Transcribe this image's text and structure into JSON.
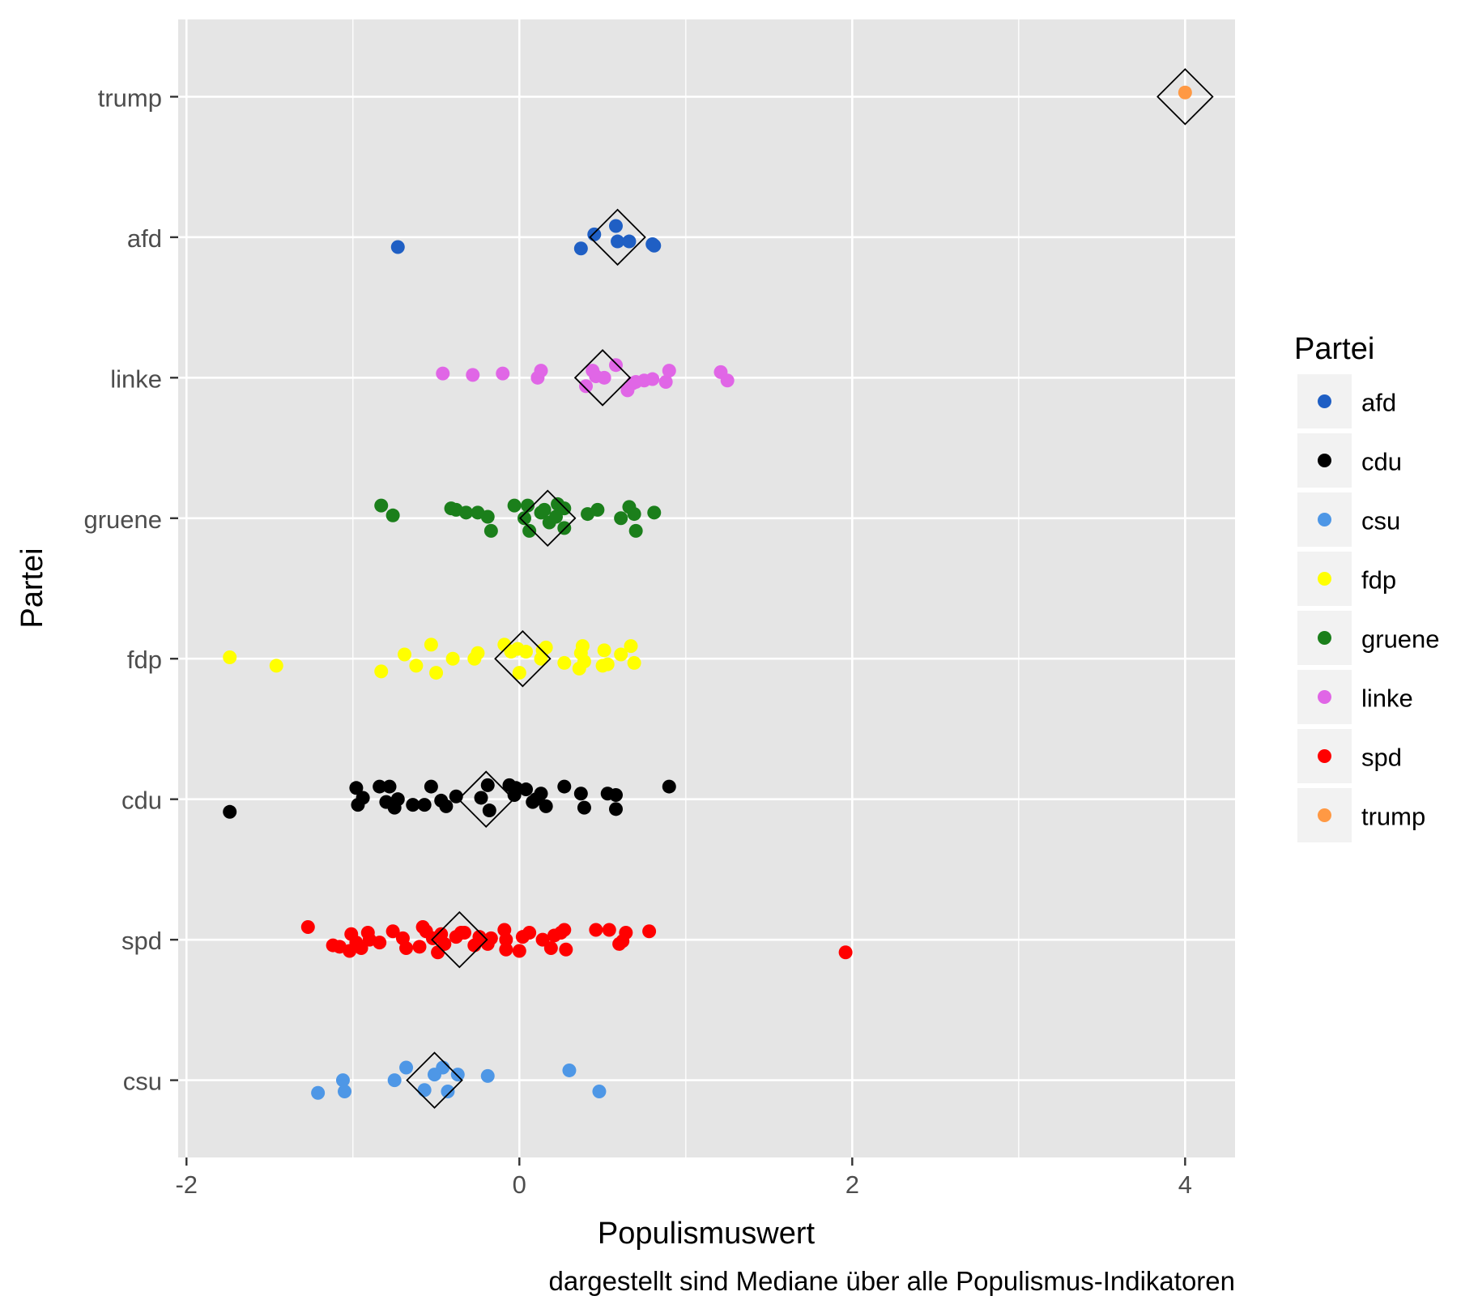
{
  "chart_data": {
    "type": "scatter",
    "title": "",
    "xlabel": "Populismuswert",
    "ylabel": "Partei",
    "caption": "dargestellt sind Mediane über alle Populismus-Indikatoren",
    "xlim": [
      -2.05,
      4.3
    ],
    "x_ticks": [
      -2,
      0,
      2,
      4
    ],
    "x_tick_labels": [
      "-2",
      "0",
      "2",
      "4"
    ],
    "categories": [
      "csu",
      "spd",
      "cdu",
      "fdp",
      "gruene",
      "linke",
      "afd",
      "trump"
    ],
    "grid": true,
    "panel_background": "#e5e5e5",
    "legend": {
      "title": "Partei",
      "position": "right",
      "entries": [
        {
          "label": "afd",
          "color": "#1f5fc4"
        },
        {
          "label": "cdu",
          "color": "#000000"
        },
        {
          "label": "csu",
          "color": "#4e97e6"
        },
        {
          "label": "fdp",
          "color": "#ffff00"
        },
        {
          "label": "gruene",
          "color": "#1b7f1b"
        },
        {
          "label": "linke",
          "color": "#e066e6"
        },
        {
          "label": "spd",
          "color": "#ff0000"
        },
        {
          "label": "trump",
          "color": "#ff9944"
        }
      ]
    },
    "series": [
      {
        "name": "trump",
        "color": "#ff9944",
        "median": 4.0,
        "points": [
          [
            4.0,
            0.03
          ]
        ]
      },
      {
        "name": "afd",
        "color": "#1f5fc4",
        "median": 0.59,
        "points": [
          [
            -0.73,
            -0.07
          ],
          [
            0.37,
            -0.08
          ],
          [
            0.45,
            0.02
          ],
          [
            0.58,
            0.08
          ],
          [
            0.59,
            -0.03
          ],
          [
            0.66,
            -0.03
          ],
          [
            0.8,
            -0.05
          ],
          [
            0.81,
            -0.06
          ]
        ]
      },
      {
        "name": "linke",
        "color": "#e066e6",
        "median": 0.5,
        "points": [
          [
            -0.46,
            0.03
          ],
          [
            -0.28,
            0.02
          ],
          [
            -0.1,
            0.03
          ],
          [
            0.11,
            0.0
          ],
          [
            0.13,
            0.05
          ],
          [
            0.4,
            -0.06
          ],
          [
            0.44,
            0.05
          ],
          [
            0.46,
            0.01
          ],
          [
            0.51,
            0.0
          ],
          [
            0.58,
            0.09
          ],
          [
            0.65,
            -0.09
          ],
          [
            0.68,
            -0.04
          ],
          [
            0.7,
            -0.03
          ],
          [
            0.75,
            -0.02
          ],
          [
            0.8,
            -0.01
          ],
          [
            0.88,
            -0.03
          ],
          [
            0.9,
            0.05
          ],
          [
            1.21,
            0.04
          ],
          [
            1.25,
            -0.02
          ]
        ]
      },
      {
        "name": "gruene",
        "color": "#1b7f1b",
        "median": 0.17,
        "points": [
          [
            -0.83,
            0.09
          ],
          [
            -0.76,
            0.02
          ],
          [
            -0.41,
            0.07
          ],
          [
            -0.38,
            0.06
          ],
          [
            -0.32,
            0.04
          ],
          [
            -0.25,
            0.04
          ],
          [
            -0.19,
            0.01
          ],
          [
            -0.17,
            -0.09
          ],
          [
            -0.03,
            0.09
          ],
          [
            0.03,
            0.0
          ],
          [
            0.05,
            0.09
          ],
          [
            0.06,
            -0.09
          ],
          [
            0.13,
            0.04
          ],
          [
            0.15,
            0.06
          ],
          [
            0.18,
            -0.03
          ],
          [
            0.22,
            0.01
          ],
          [
            0.23,
            0.1
          ],
          [
            0.27,
            0.07
          ],
          [
            0.27,
            -0.07
          ],
          [
            0.41,
            0.03
          ],
          [
            0.47,
            0.06
          ],
          [
            0.61,
            0.0
          ],
          [
            0.66,
            0.08
          ],
          [
            0.69,
            0.03
          ],
          [
            0.7,
            -0.09
          ],
          [
            0.81,
            0.04
          ]
        ]
      },
      {
        "name": "fdp",
        "color": "#ffff00",
        "median": 0.02,
        "points": [
          [
            -1.74,
            0.01
          ],
          [
            -1.46,
            -0.05
          ],
          [
            -0.83,
            -0.09
          ],
          [
            -0.69,
            0.03
          ],
          [
            -0.62,
            -0.05
          ],
          [
            -0.53,
            0.1
          ],
          [
            -0.5,
            -0.1
          ],
          [
            -0.4,
            0.0
          ],
          [
            -0.27,
            0.0
          ],
          [
            -0.25,
            0.04
          ],
          [
            -0.09,
            0.1
          ],
          [
            -0.05,
            0.05
          ],
          [
            -0.01,
            0.07
          ],
          [
            0.0,
            -0.1
          ],
          [
            0.04,
            0.05
          ],
          [
            0.13,
            0.0
          ],
          [
            0.14,
            0.06
          ],
          [
            0.16,
            0.08
          ],
          [
            0.27,
            -0.03
          ],
          [
            0.36,
            -0.07
          ],
          [
            0.37,
            0.04
          ],
          [
            0.38,
            0.09
          ],
          [
            0.39,
            -0.02
          ],
          [
            0.5,
            -0.05
          ],
          [
            0.51,
            0.06
          ],
          [
            0.53,
            -0.04
          ],
          [
            0.61,
            0.03
          ],
          [
            0.67,
            0.09
          ],
          [
            0.69,
            -0.03
          ]
        ]
      },
      {
        "name": "cdu",
        "color": "#000000",
        "median": -0.2,
        "points": [
          [
            -1.74,
            -0.09
          ],
          [
            -0.98,
            0.08
          ],
          [
            -0.97,
            -0.04
          ],
          [
            -0.94,
            0.01
          ],
          [
            -0.84,
            0.09
          ],
          [
            -0.8,
            -0.02
          ],
          [
            -0.78,
            0.09
          ],
          [
            -0.75,
            -0.06
          ],
          [
            -0.73,
            0.0
          ],
          [
            -0.64,
            -0.04
          ],
          [
            -0.57,
            -0.04
          ],
          [
            -0.53,
            0.09
          ],
          [
            -0.47,
            -0.01
          ],
          [
            -0.44,
            -0.05
          ],
          [
            -0.38,
            0.02
          ],
          [
            -0.23,
            0.01
          ],
          [
            -0.19,
            0.1
          ],
          [
            -0.18,
            -0.08
          ],
          [
            -0.06,
            0.1
          ],
          [
            -0.02,
            0.08
          ],
          [
            -0.03,
            0.03
          ],
          [
            0.04,
            0.07
          ],
          [
            0.08,
            -0.02
          ],
          [
            0.1,
            0.0
          ],
          [
            0.13,
            0.04
          ],
          [
            0.16,
            -0.05
          ],
          [
            0.27,
            0.09
          ],
          [
            0.37,
            0.04
          ],
          [
            0.39,
            -0.06
          ],
          [
            0.53,
            0.04
          ],
          [
            0.58,
            0.03
          ],
          [
            0.58,
            -0.07
          ],
          [
            0.9,
            0.09
          ]
        ]
      },
      {
        "name": "spd",
        "color": "#ff0000",
        "median": -0.36,
        "points": [
          [
            -1.27,
            0.09
          ],
          [
            -1.12,
            -0.04
          ],
          [
            -1.08,
            -0.05
          ],
          [
            -1.02,
            -0.08
          ],
          [
            -1.01,
            0.04
          ],
          [
            -0.98,
            -0.02
          ],
          [
            -0.95,
            -0.06
          ],
          [
            -0.91,
            0.05
          ],
          [
            -0.9,
            0.0
          ],
          [
            -0.84,
            -0.02
          ],
          [
            -0.76,
            0.06
          ],
          [
            -0.7,
            0.01
          ],
          [
            -0.68,
            -0.06
          ],
          [
            -0.6,
            -0.05
          ],
          [
            -0.58,
            0.09
          ],
          [
            -0.56,
            0.06
          ],
          [
            -0.52,
            0.01
          ],
          [
            -0.49,
            -0.09
          ],
          [
            -0.47,
            0.04
          ],
          [
            -0.45,
            -0.03
          ],
          [
            -0.38,
            0.02
          ],
          [
            -0.35,
            0.05
          ],
          [
            -0.33,
            0.05
          ],
          [
            -0.27,
            -0.04
          ],
          [
            -0.24,
            0.02
          ],
          [
            -0.19,
            -0.03
          ],
          [
            -0.17,
            0.01
          ],
          [
            -0.09,
            0.07
          ],
          [
            -0.08,
            -0.07
          ],
          [
            -0.08,
            0.0
          ],
          [
            0.0,
            -0.08
          ],
          [
            0.02,
            0.02
          ],
          [
            0.06,
            0.05
          ],
          [
            0.14,
            0.0
          ],
          [
            0.19,
            -0.06
          ],
          [
            0.21,
            0.03
          ],
          [
            0.25,
            0.05
          ],
          [
            0.27,
            0.07
          ],
          [
            0.28,
            -0.07
          ],
          [
            0.46,
            0.07
          ],
          [
            0.54,
            0.07
          ],
          [
            0.6,
            -0.03
          ],
          [
            0.62,
            -0.01
          ],
          [
            0.64,
            0.05
          ],
          [
            0.78,
            0.06
          ],
          [
            1.96,
            -0.09
          ]
        ]
      },
      {
        "name": "csu",
        "color": "#4e97e6",
        "median": -0.51,
        "points": [
          [
            -1.21,
            -0.09
          ],
          [
            -1.06,
            0.0
          ],
          [
            -1.05,
            -0.08
          ],
          [
            -0.75,
            0.0
          ],
          [
            -0.68,
            0.09
          ],
          [
            -0.57,
            -0.07
          ],
          [
            -0.51,
            0.04
          ],
          [
            -0.46,
            0.09
          ],
          [
            -0.43,
            -0.08
          ],
          [
            -0.37,
            0.04
          ],
          [
            -0.19,
            0.03
          ],
          [
            0.3,
            0.07
          ],
          [
            0.48,
            -0.08
          ]
        ]
      }
    ]
  }
}
